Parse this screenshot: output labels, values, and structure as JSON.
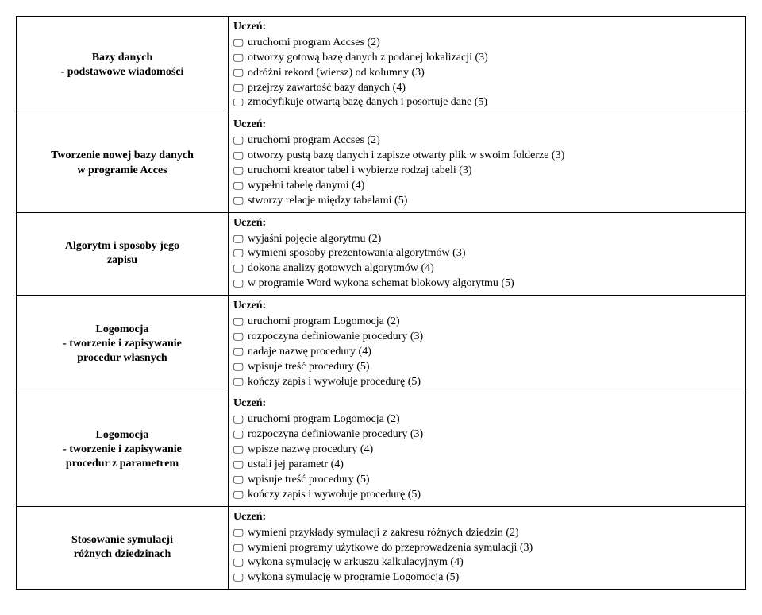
{
  "student_label": "Uczeń:",
  "icon_glyph": "🖵",
  "rows": [
    {
      "title_lines": [
        "Bazy danych",
        "- podstawowe wiadomości"
      ],
      "items": [
        "uruchomi program Accses (2)",
        "otworzy gotową bazę danych z podanej lokalizacji (3)",
        "odróżni rekord (wiersz) od kolumny  (3)",
        "przejrzy zawartość bazy danych (4)",
        "zmodyfikuje otwartą bazę danych  i posortuje dane (5)"
      ]
    },
    {
      "title_lines": [
        "Tworzenie nowej bazy danych",
        "w programie Acces"
      ],
      "items": [
        "uruchomi program Accses (2)",
        "otworzy pustą bazę danych i zapisze otwarty plik w swoim folderze (3)",
        "uruchomi kreator tabel i wybierze rodzaj tabeli  (3)",
        "wypełni tabelę danymi (4)",
        "stworzy relacje między tabelami (5)"
      ]
    },
    {
      "title_lines": [
        "Algorytm i sposoby jego",
        "zapisu"
      ],
      "items": [
        "wyjaśni pojęcie algorytmu (2)",
        "wymieni sposoby prezentowania algorytmów  (3)",
        "dokona analizy gotowych algorytmów   (4)",
        "w programie Word wykona schemat blokowy algorytmu  (5)"
      ]
    },
    {
      "title_lines": [
        "Logomocja",
        "- tworzenie i zapisywanie",
        "procedur własnych"
      ],
      "items": [
        "uruchomi program Logomocja  (2)",
        "rozpoczyna definiowanie procedury  (3)",
        "nadaje nazwę procedury  (4)",
        "wpisuje treść procedury (5)",
        "kończy zapis i wywołuje procedurę (5)"
      ]
    },
    {
      "title_lines": [
        "Logomocja",
        "- tworzenie i zapisywanie",
        "procedur z parametrem"
      ],
      "items": [
        "uruchomi program Logomocja  (2)",
        "rozpoczyna definiowanie procedury  (3)",
        "wpisze nazwę procedury  (4)",
        "ustali jej parametr (4)",
        "wpisuje treść procedury (5)",
        "kończy zapis i wywołuje procedurę  (5)"
      ]
    },
    {
      "title_lines": [
        "Stosowanie symulacji",
        "różnych dziedzinach"
      ],
      "items": [
        "wymieni przykłady symulacji z zakresu różnych dziedzin  (2)",
        "wymieni programy użytkowe do przeprowadzenia symulacji  (3)",
        "wykona symulację w arkuszu kalkulacyjnym (4)",
        "wykona symulację w programie Logomocja (5)"
      ]
    }
  ]
}
